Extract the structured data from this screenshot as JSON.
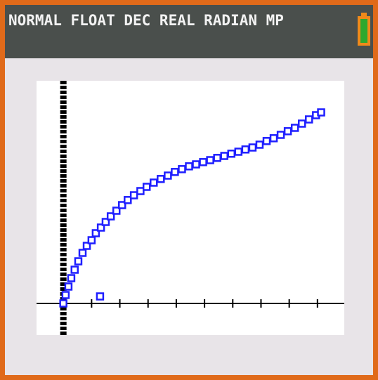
{
  "status_bar": "NORMAL FLOAT DEC REAL RADIAN MP",
  "chart_data": {
    "type": "scatter",
    "color": "#1f1fff",
    "x": [
      0,
      0.08,
      0.18,
      0.28,
      0.4,
      0.53,
      0.68,
      0.83,
      1,
      1.15,
      1.33,
      1.5,
      1.68,
      1.88,
      2.08,
      2.28,
      2.5,
      2.73,
      2.95,
      3.2,
      3.45,
      3.7,
      3.95,
      4.2,
      4.45,
      4.7,
      4.95,
      5.2,
      5.45,
      5.7,
      5.95,
      6.2,
      6.45,
      6.7,
      6.95,
      7.2,
      7.45,
      7.7,
      7.95,
      8.2,
      8.45,
      8.7,
      8.95,
      9.13,
      1.3
    ],
    "values": [
      0,
      0.3,
      0.6,
      0.9,
      1.2,
      1.5,
      1.8,
      2.05,
      2.25,
      2.5,
      2.7,
      2.9,
      3.1,
      3.3,
      3.5,
      3.68,
      3.85,
      4,
      4.15,
      4.3,
      4.43,
      4.55,
      4.68,
      4.78,
      4.88,
      4.95,
      5.03,
      5.1,
      5.18,
      5.25,
      5.33,
      5.4,
      5.48,
      5.55,
      5.65,
      5.78,
      5.88,
      6,
      6.13,
      6.25,
      6.4,
      6.55,
      6.7,
      6.8,
      0.25
    ],
    "xlim": [
      -0.95,
      9.95
    ],
    "ylim": [
      -1.125,
      7.925
    ],
    "xticks": [
      0,
      1,
      2,
      3,
      4,
      5,
      6,
      7,
      8,
      9
    ]
  }
}
